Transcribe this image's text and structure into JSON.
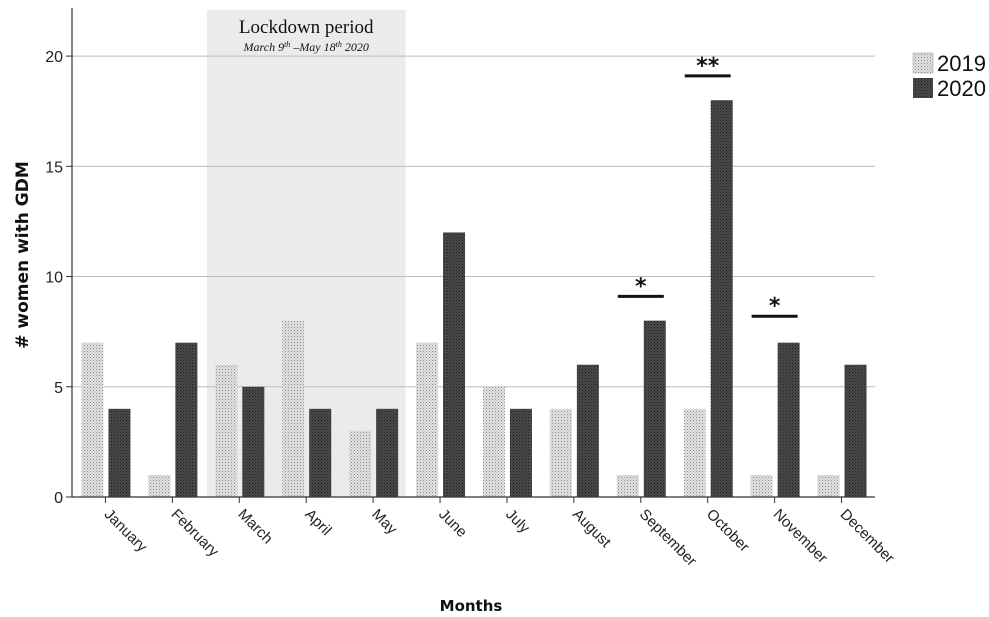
{
  "chart_data": {
    "type": "bar",
    "categories": [
      "January",
      "February",
      "March",
      "April",
      "May",
      "June",
      "July",
      "August",
      "September",
      "October",
      "November",
      "December"
    ],
    "series": [
      {
        "name": "2019",
        "values": [
          7,
          1,
          6,
          8,
          3,
          7,
          5,
          4,
          1,
          4,
          1,
          1
        ],
        "color": "#dcdcdc",
        "pattern": "dotted"
      },
      {
        "name": "2020",
        "values": [
          4,
          7,
          5,
          4,
          4,
          12,
          4,
          6,
          8,
          18,
          7,
          6
        ],
        "color": "#444444",
        "pattern": "dense-dark"
      }
    ],
    "xlabel": "Months",
    "ylabel": "# women with GDM",
    "ylim": [
      0,
      22
    ],
    "yticks": [
      0,
      5,
      10,
      15,
      20
    ],
    "grid": "horizontal",
    "legend": "top-right",
    "shaded_region": {
      "from_category": "March",
      "to_category": "May",
      "title": "Lockdown period",
      "subtitle": {
        "m1": "March 9",
        "sup1": "th",
        "mid": " –May 18",
        "sup2": "th",
        "end": " 2020"
      },
      "color": "#ebebeb"
    },
    "significance": [
      {
        "category": "September",
        "label": "*",
        "level": 9.1
      },
      {
        "category": "October",
        "label": "**",
        "level": 19.1
      },
      {
        "category": "November",
        "label": "*",
        "level": 8.2
      }
    ]
  }
}
